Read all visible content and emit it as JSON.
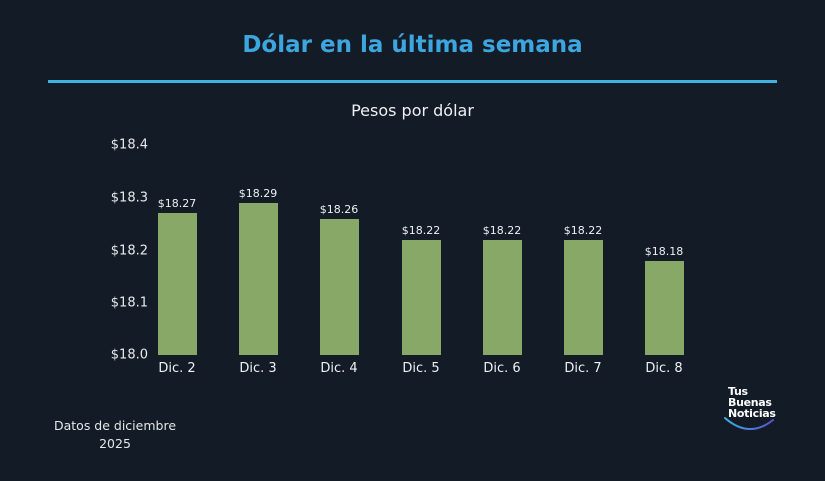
{
  "header": {
    "title": "Dólar en la última semana",
    "accent_color": "#3ea6df"
  },
  "chart_data": {
    "type": "bar",
    "title": "Pesos por dólar",
    "xlabel": "",
    "ylabel": "",
    "ylim": [
      18.0,
      18.4
    ],
    "yticks": [
      "$18.4",
      "$18.3",
      "$18.2",
      "$18.1",
      "$18.0"
    ],
    "categories": [
      "Dic. 2",
      "Dic. 3",
      "Dic. 4",
      "Dic. 5",
      "Dic. 6",
      "Dic. 7",
      "Dic. 8"
    ],
    "values": [
      18.27,
      18.29,
      18.26,
      18.22,
      18.22,
      18.22,
      18.18
    ],
    "value_labels": [
      "$18.27",
      "$18.29",
      "$18.26",
      "$18.22",
      "$18.22",
      "$18.22",
      "$18.18"
    ],
    "bar_color": "#87a866",
    "grid": false,
    "legend": null
  },
  "footnote": {
    "line1": "Datos de diciembre",
    "line2": "2025"
  },
  "logo": {
    "line1": "Tus",
    "line2": "Buenas",
    "line3": "Noticias"
  }
}
